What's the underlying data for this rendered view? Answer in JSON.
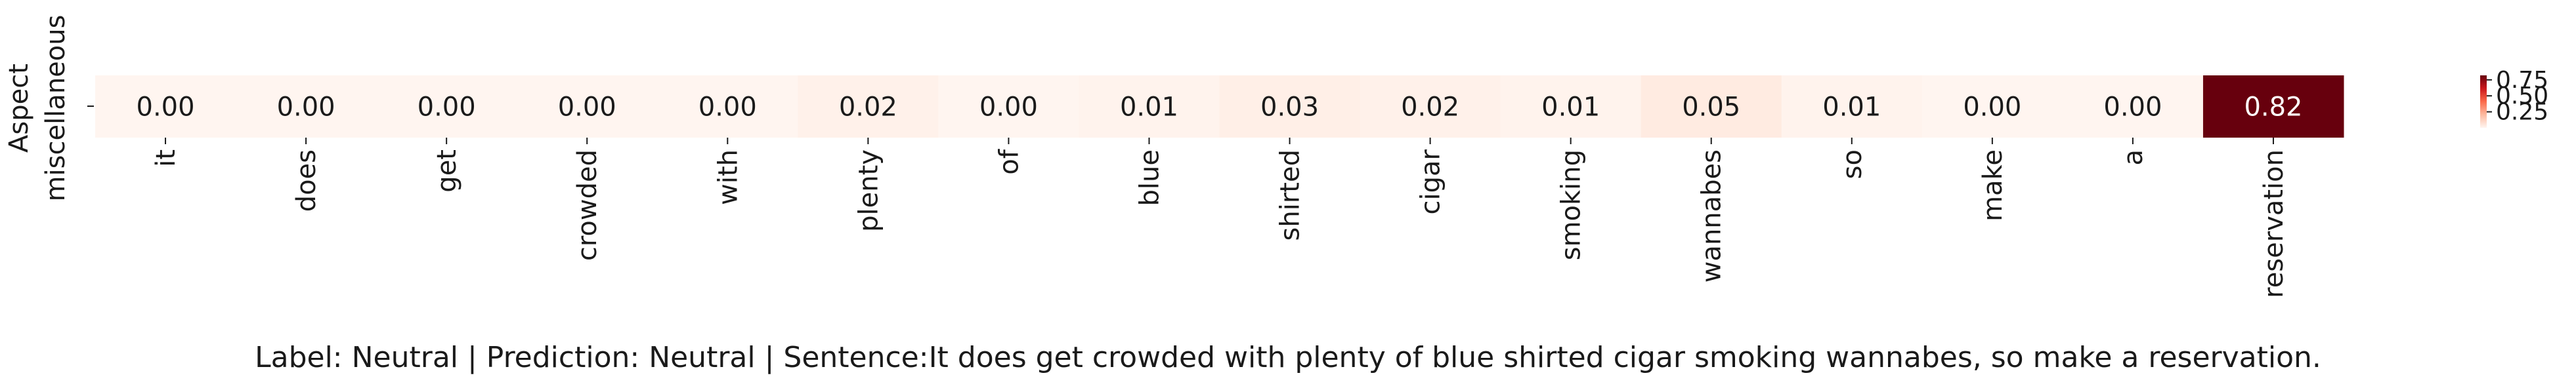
{
  "chart_data": {
    "type": "heatmap",
    "row_label_title": "Aspect",
    "rows": [
      "miscellaneous"
    ],
    "tokens": [
      "it",
      "does",
      "get",
      "crowded",
      "with",
      "plenty",
      "of",
      "blue",
      "shirted",
      "cigar",
      "smoking",
      "wannabes",
      "so",
      "make",
      "a",
      "reservation"
    ],
    "values": [
      [
        0.0,
        0.0,
        0.0,
        0.0,
        0.0,
        0.02,
        0.0,
        0.01,
        0.03,
        0.02,
        0.01,
        0.05,
        0.01,
        0.0,
        0.0,
        0.82
      ]
    ],
    "value_labels": [
      "0.00",
      "0.00",
      "0.00",
      "0.00",
      "0.00",
      "0.02",
      "0.00",
      "0.01",
      "0.03",
      "0.02",
      "0.01",
      "0.05",
      "0.01",
      "0.00",
      "0.00",
      "0.82"
    ],
    "colorscale": "Reds",
    "color_range": [
      0.0,
      0.82
    ],
    "colorbar_ticks": [
      "0.25",
      "0.50",
      "0.75"
    ],
    "colorbar_tick_values": [
      0.25,
      0.5,
      0.75
    ],
    "caption": "Label: Neutral | Prediction: Neutral | Sentence:It does get crowded with plenty of blue shirted cigar smoking wannabes, so make a reservation."
  }
}
